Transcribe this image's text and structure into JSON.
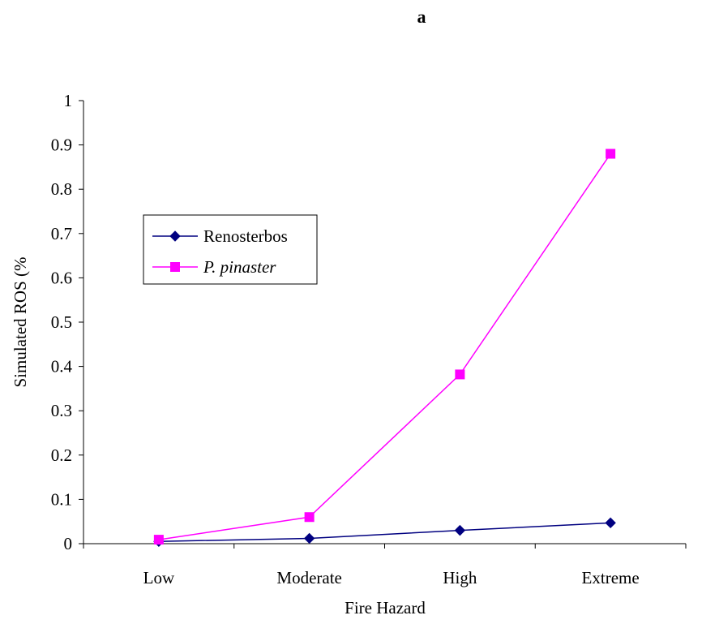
{
  "chart_data": {
    "type": "line",
    "title": "a",
    "xlabel": "Fire Hazard",
    "ylabel": "Simulated ROS (%",
    "categories": [
      "Low",
      "Moderate",
      "High",
      "Extreme"
    ],
    "ylim": [
      0,
      1
    ],
    "yticks": [
      0,
      0.1,
      0.2,
      0.3,
      0.4,
      0.5,
      0.6,
      0.7,
      0.8,
      0.9,
      1
    ],
    "ytick_labels": [
      "0",
      "0.1",
      "0.2",
      "0.3",
      "0.4",
      "0.5",
      "0.6",
      "0.7",
      "0.8",
      "0.9",
      "1"
    ],
    "grid": false,
    "legend_position": "upper-left",
    "series": [
      {
        "name": "Renosterbos",
        "values": [
          0.005,
          0.012,
          0.03,
          0.047
        ],
        "color": "#000080",
        "marker": "diamond",
        "italic": false
      },
      {
        "name": "P. pinaster",
        "values": [
          0.009,
          0.06,
          0.382,
          0.88
        ],
        "color": "#ff00ff",
        "marker": "square",
        "italic": true
      }
    ]
  }
}
